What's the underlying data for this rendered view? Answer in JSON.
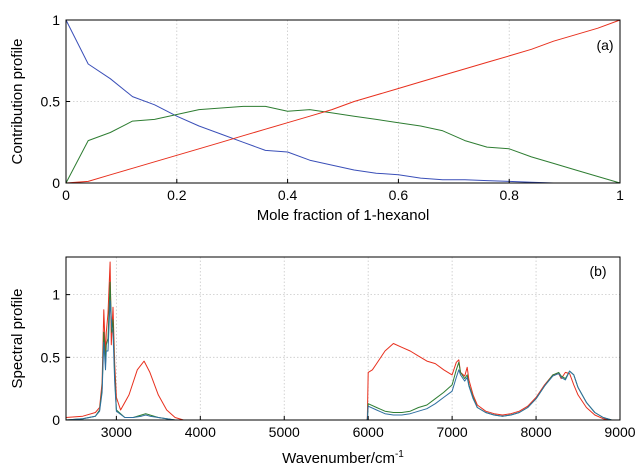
{
  "chart_data": [
    {
      "type": "line",
      "panel_label": "(a)",
      "xlabel": "Mole fraction of 1-hexanol",
      "ylabel": "Contribution profile",
      "xlim": [
        0,
        1
      ],
      "ylim": [
        0,
        1
      ],
      "xticks": [
        0,
        0.2,
        0.4,
        0.6,
        0.8,
        1
      ],
      "xtick_labels": [
        "0",
        "0.2",
        "0.4",
        "0.6",
        "0.8",
        "1"
      ],
      "yticks": [
        0,
        0.5,
        1
      ],
      "ytick_labels": [
        "0",
        "0.5",
        "1"
      ],
      "grid": true,
      "series": [
        {
          "color": "#3a4fb8",
          "x": [
            0,
            0.04,
            0.08,
            0.12,
            0.16,
            0.2,
            0.24,
            0.28,
            0.32,
            0.36,
            0.4,
            0.44,
            0.48,
            0.52,
            0.56,
            0.6,
            0.64,
            0.68,
            0.72,
            0.76,
            0.8,
            0.84,
            0.88,
            0.92,
            0.96,
            1.0
          ],
          "y": [
            1.0,
            0.73,
            0.64,
            0.53,
            0.48,
            0.41,
            0.35,
            0.3,
            0.25,
            0.2,
            0.19,
            0.14,
            0.11,
            0.08,
            0.06,
            0.05,
            0.03,
            0.02,
            0.02,
            0.015,
            0.01,
            0.005,
            0.0,
            0.0,
            0.0,
            0.0
          ]
        },
        {
          "color": "#2e7d32",
          "x": [
            0,
            0.04,
            0.08,
            0.12,
            0.16,
            0.2,
            0.24,
            0.28,
            0.32,
            0.36,
            0.4,
            0.44,
            0.48,
            0.52,
            0.56,
            0.6,
            0.64,
            0.68,
            0.72,
            0.76,
            0.8,
            0.84,
            0.88,
            0.92,
            0.96,
            1.0
          ],
          "y": [
            0.0,
            0.26,
            0.31,
            0.38,
            0.39,
            0.42,
            0.45,
            0.46,
            0.47,
            0.47,
            0.44,
            0.45,
            0.43,
            0.41,
            0.39,
            0.37,
            0.35,
            0.32,
            0.26,
            0.22,
            0.21,
            0.16,
            0.12,
            0.08,
            0.04,
            0.0
          ]
        },
        {
          "color": "#e8301e",
          "x": [
            0,
            0.04,
            0.08,
            0.12,
            0.16,
            0.2,
            0.24,
            0.28,
            0.32,
            0.36,
            0.4,
            0.44,
            0.48,
            0.52,
            0.56,
            0.6,
            0.64,
            0.68,
            0.72,
            0.76,
            0.8,
            0.84,
            0.88,
            0.92,
            0.96,
            1.0
          ],
          "y": [
            0.0,
            0.01,
            0.05,
            0.09,
            0.13,
            0.17,
            0.21,
            0.25,
            0.29,
            0.33,
            0.37,
            0.41,
            0.45,
            0.5,
            0.54,
            0.58,
            0.62,
            0.66,
            0.7,
            0.74,
            0.78,
            0.82,
            0.87,
            0.91,
            0.95,
            1.0
          ]
        }
      ]
    },
    {
      "type": "line",
      "panel_label": "(b)",
      "xlabel": "Wavenumber/cm",
      "xlabel_superscript": "-1",
      "ylabel": "Spectral profile",
      "xlim": [
        2400,
        9000
      ],
      "ylim": [
        0,
        1.3
      ],
      "xticks": [
        3000,
        4000,
        5000,
        6000,
        7000,
        8000,
        9000
      ],
      "xtick_labels": [
        "3000",
        "4000",
        "5000",
        "6000",
        "7000",
        "8000",
        "9000"
      ],
      "yticks": [
        0,
        0.5,
        1
      ],
      "ytick_labels": [
        "0",
        "0.5",
        "1"
      ],
      "grid": true,
      "series": [
        {
          "color": "#e8301e",
          "x": [
            2400,
            2600,
            2750,
            2800,
            2830,
            2850,
            2870,
            2880,
            2900,
            2925,
            2940,
            2960,
            2980,
            3000,
            3050,
            3150,
            3250,
            3330,
            3400,
            3500,
            3600,
            3700,
            3800,
            4000,
            5000,
            5990,
            6000,
            6050,
            6100,
            6200,
            6300,
            6400,
            6500,
            6600,
            6700,
            6800,
            6900,
            7000,
            7050,
            7080,
            7100,
            7150,
            7180,
            7200,
            7250,
            7300,
            7400,
            7500,
            7600,
            7700,
            7800,
            7900,
            8000,
            8100,
            8200,
            8270,
            8300,
            8350,
            8400,
            8450,
            8500,
            8600,
            8700,
            8800,
            8900,
            9000
          ],
          "y": [
            0.02,
            0.03,
            0.06,
            0.1,
            0.3,
            0.88,
            0.5,
            0.7,
            0.85,
            1.26,
            0.6,
            0.9,
            0.45,
            0.18,
            0.08,
            0.2,
            0.4,
            0.47,
            0.38,
            0.2,
            0.08,
            0.02,
            0.0,
            0.0,
            0.0,
            0.0,
            0.38,
            0.4,
            0.45,
            0.55,
            0.61,
            0.58,
            0.55,
            0.51,
            0.47,
            0.45,
            0.4,
            0.36,
            0.46,
            0.48,
            0.38,
            0.35,
            0.42,
            0.32,
            0.2,
            0.12,
            0.07,
            0.05,
            0.04,
            0.05,
            0.07,
            0.11,
            0.18,
            0.28,
            0.36,
            0.37,
            0.33,
            0.38,
            0.37,
            0.28,
            0.2,
            0.1,
            0.04,
            0.01,
            0.0,
            0.0
          ]
        },
        {
          "color": "#2e7d32",
          "x": [
            2400,
            2600,
            2750,
            2800,
            2830,
            2850,
            2870,
            2880,
            2900,
            2925,
            2945,
            2960,
            2980,
            3000,
            3100,
            3200,
            3300,
            3350,
            3400,
            3500,
            3600,
            3700,
            4000,
            5000,
            5990,
            6000,
            6100,
            6200,
            6300,
            6400,
            6500,
            6600,
            6700,
            6800,
            6900,
            7000,
            7050,
            7080,
            7100,
            7150,
            7180,
            7200,
            7250,
            7300,
            7400,
            7500,
            7600,
            7700,
            7800,
            7900,
            8000,
            8100,
            8200,
            8270,
            8300,
            8350,
            8400,
            8450,
            8500,
            8600,
            8700,
            8800,
            8900,
            9000
          ],
          "y": [
            0.0,
            0.01,
            0.03,
            0.08,
            0.25,
            0.7,
            0.45,
            0.6,
            0.65,
            1.1,
            0.7,
            0.8,
            0.35,
            0.08,
            0.02,
            0.02,
            0.04,
            0.05,
            0.04,
            0.02,
            0.01,
            0.0,
            0.0,
            0.0,
            0.0,
            0.13,
            0.1,
            0.07,
            0.06,
            0.06,
            0.07,
            0.1,
            0.12,
            0.17,
            0.22,
            0.28,
            0.4,
            0.46,
            0.38,
            0.33,
            0.36,
            0.28,
            0.18,
            0.1,
            0.06,
            0.04,
            0.03,
            0.04,
            0.06,
            0.1,
            0.17,
            0.27,
            0.36,
            0.38,
            0.35,
            0.33,
            0.39,
            0.36,
            0.26,
            0.14,
            0.06,
            0.02,
            0.0,
            0.0
          ]
        },
        {
          "color": "#2f6fa0",
          "x": [
            2400,
            2600,
            2750,
            2800,
            2830,
            2850,
            2870,
            2880,
            2900,
            2925,
            2945,
            2960,
            2980,
            3000,
            3100,
            3200,
            3300,
            3350,
            3400,
            3500,
            3600,
            3700,
            4000,
            5000,
            5990,
            6000,
            6100,
            6200,
            6300,
            6400,
            6500,
            6600,
            6700,
            6800,
            6900,
            7000,
            7050,
            7080,
            7100,
            7150,
            7180,
            7200,
            7250,
            7300,
            7400,
            7500,
            7600,
            7700,
            7800,
            7900,
            8000,
            8100,
            8200,
            8270,
            8300,
            8350,
            8400,
            8450,
            8500,
            8600,
            8700,
            8800,
            8900,
            9000
          ],
          "y": [
            0.0,
            0.01,
            0.03,
            0.07,
            0.22,
            0.62,
            0.4,
            0.55,
            0.55,
            0.95,
            0.75,
            0.7,
            0.3,
            0.07,
            0.02,
            0.02,
            0.03,
            0.04,
            0.03,
            0.02,
            0.01,
            0.0,
            0.0,
            0.0,
            0.0,
            0.11,
            0.08,
            0.05,
            0.04,
            0.04,
            0.05,
            0.07,
            0.09,
            0.13,
            0.18,
            0.23,
            0.34,
            0.4,
            0.36,
            0.31,
            0.34,
            0.27,
            0.17,
            0.1,
            0.06,
            0.04,
            0.03,
            0.04,
            0.06,
            0.1,
            0.17,
            0.27,
            0.35,
            0.37,
            0.34,
            0.32,
            0.39,
            0.36,
            0.26,
            0.14,
            0.06,
            0.02,
            0.0,
            0.0
          ]
        }
      ]
    }
  ]
}
